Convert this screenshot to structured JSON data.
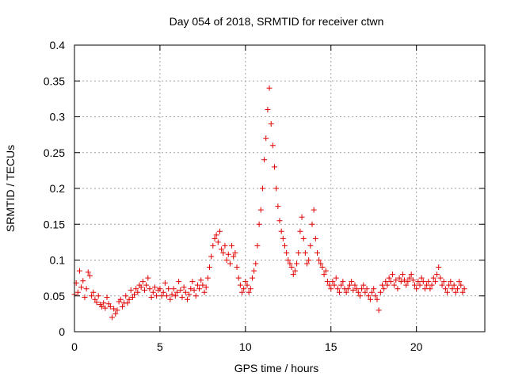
{
  "chart_data": {
    "type": "scatter",
    "title": "Day 054 of 2018, SRMTID for receiver ctwn",
    "xlabel": "GPS time / hours",
    "ylabel": "SRMTID / TECUs",
    "xlim": [
      0,
      24
    ],
    "ylim": [
      0,
      0.4
    ],
    "xticks": [
      0,
      5,
      10,
      15,
      20
    ],
    "xtick_labels": [
      "0",
      "5",
      "10",
      "15",
      "20"
    ],
    "yticks": [
      0,
      0.05,
      0.1,
      0.15,
      0.2,
      0.25,
      0.3,
      0.35,
      0.4
    ],
    "ytick_labels": [
      "0",
      "0.05",
      "0.1",
      "0.15",
      "0.2",
      "0.25",
      "0.3",
      "0.35",
      "0.4"
    ],
    "grid": true,
    "marker": "plus",
    "color": "#e00000",
    "series": [
      {
        "name": "SRMTID",
        "points": [
          [
            0.0,
            0.052
          ],
          [
            0.1,
            0.068
          ],
          [
            0.2,
            0.055
          ],
          [
            0.3,
            0.085
          ],
          [
            0.4,
            0.062
          ],
          [
            0.5,
            0.071
          ],
          [
            0.6,
            0.048
          ],
          [
            0.7,
            0.06
          ],
          [
            0.8,
            0.083
          ],
          [
            0.9,
            0.078
          ],
          [
            1.0,
            0.05
          ],
          [
            1.1,
            0.055
          ],
          [
            1.2,
            0.045
          ],
          [
            1.3,
            0.041
          ],
          [
            1.4,
            0.05
          ],
          [
            1.5,
            0.038
          ],
          [
            1.6,
            0.035
          ],
          [
            1.7,
            0.04
          ],
          [
            1.8,
            0.033
          ],
          [
            1.9,
            0.048
          ],
          [
            2.0,
            0.039
          ],
          [
            2.1,
            0.035
          ],
          [
            2.2,
            0.02
          ],
          [
            2.3,
            0.032
          ],
          [
            2.4,
            0.025
          ],
          [
            2.5,
            0.03
          ],
          [
            2.6,
            0.042
          ],
          [
            2.7,
            0.045
          ],
          [
            2.8,
            0.035
          ],
          [
            2.9,
            0.04
          ],
          [
            3.0,
            0.05
          ],
          [
            3.1,
            0.04
          ],
          [
            3.2,
            0.045
          ],
          [
            3.3,
            0.058
          ],
          [
            3.4,
            0.048
          ],
          [
            3.5,
            0.052
          ],
          [
            3.6,
            0.06
          ],
          [
            3.7,
            0.055
          ],
          [
            3.8,
            0.065
          ],
          [
            3.9,
            0.062
          ],
          [
            4.0,
            0.07
          ],
          [
            4.1,
            0.058
          ],
          [
            4.2,
            0.065
          ],
          [
            4.3,
            0.075
          ],
          [
            4.4,
            0.06
          ],
          [
            4.5,
            0.048
          ],
          [
            4.6,
            0.055
          ],
          [
            4.7,
            0.062
          ],
          [
            4.8,
            0.05
          ],
          [
            4.9,
            0.058
          ],
          [
            5.0,
            0.06
          ],
          [
            5.1,
            0.05
          ],
          [
            5.2,
            0.055
          ],
          [
            5.3,
            0.068
          ],
          [
            5.4,
            0.05
          ],
          [
            5.5,
            0.06
          ],
          [
            5.6,
            0.045
          ],
          [
            5.7,
            0.052
          ],
          [
            5.8,
            0.06
          ],
          [
            5.9,
            0.05
          ],
          [
            6.0,
            0.055
          ],
          [
            6.1,
            0.07
          ],
          [
            6.2,
            0.058
          ],
          [
            6.3,
            0.048
          ],
          [
            6.4,
            0.062
          ],
          [
            6.5,
            0.055
          ],
          [
            6.6,
            0.045
          ],
          [
            6.7,
            0.052
          ],
          [
            6.8,
            0.06
          ],
          [
            6.9,
            0.07
          ],
          [
            7.0,
            0.058
          ],
          [
            7.1,
            0.05
          ],
          [
            7.2,
            0.065
          ],
          [
            7.3,
            0.06
          ],
          [
            7.4,
            0.072
          ],
          [
            7.5,
            0.065
          ],
          [
            7.6,
            0.055
          ],
          [
            7.7,
            0.062
          ],
          [
            7.8,
            0.075
          ],
          [
            7.9,
            0.09
          ],
          [
            8.0,
            0.105
          ],
          [
            8.1,
            0.12
          ],
          [
            8.2,
            0.13
          ],
          [
            8.3,
            0.135
          ],
          [
            8.4,
            0.125
          ],
          [
            8.5,
            0.14
          ],
          [
            8.6,
            0.115
          ],
          [
            8.7,
            0.11
          ],
          [
            8.8,
            0.12
          ],
          [
            8.9,
            0.1
          ],
          [
            9.0,
            0.108
          ],
          [
            9.1,
            0.095
          ],
          [
            9.2,
            0.12
          ],
          [
            9.3,
            0.105
          ],
          [
            9.4,
            0.11
          ],
          [
            9.5,
            0.09
          ],
          [
            9.6,
            0.075
          ],
          [
            9.7,
            0.065
          ],
          [
            9.8,
            0.055
          ],
          [
            9.9,
            0.06
          ],
          [
            10.0,
            0.07
          ],
          [
            10.1,
            0.065
          ],
          [
            10.2,
            0.055
          ],
          [
            10.3,
            0.06
          ],
          [
            10.4,
            0.075
          ],
          [
            10.5,
            0.085
          ],
          [
            10.6,
            0.095
          ],
          [
            10.7,
            0.12
          ],
          [
            10.8,
            0.15
          ],
          [
            10.9,
            0.17
          ],
          [
            11.0,
            0.2
          ],
          [
            11.1,
            0.24
          ],
          [
            11.2,
            0.27
          ],
          [
            11.3,
            0.31
          ],
          [
            11.4,
            0.34
          ],
          [
            11.5,
            0.29
          ],
          [
            11.6,
            0.26
          ],
          [
            11.7,
            0.23
          ],
          [
            11.8,
            0.2
          ],
          [
            11.9,
            0.175
          ],
          [
            12.0,
            0.155
          ],
          [
            12.1,
            0.14
          ],
          [
            12.2,
            0.13
          ],
          [
            12.3,
            0.12
          ],
          [
            12.4,
            0.11
          ],
          [
            12.5,
            0.1
          ],
          [
            12.6,
            0.095
          ],
          [
            12.7,
            0.09
          ],
          [
            12.8,
            0.08
          ],
          [
            12.9,
            0.085
          ],
          [
            13.0,
            0.095
          ],
          [
            13.1,
            0.11
          ],
          [
            13.2,
            0.14
          ],
          [
            13.3,
            0.16
          ],
          [
            13.4,
            0.13
          ],
          [
            13.5,
            0.11
          ],
          [
            13.6,
            0.095
          ],
          [
            13.7,
            0.1
          ],
          [
            13.8,
            0.12
          ],
          [
            13.9,
            0.15
          ],
          [
            14.0,
            0.17
          ],
          [
            14.1,
            0.13
          ],
          [
            14.2,
            0.11
          ],
          [
            14.3,
            0.1
          ],
          [
            14.4,
            0.095
          ],
          [
            14.5,
            0.09
          ],
          [
            14.6,
            0.08
          ],
          [
            14.7,
            0.085
          ],
          [
            14.8,
            0.07
          ],
          [
            14.9,
            0.065
          ],
          [
            15.0,
            0.06
          ],
          [
            15.1,
            0.07
          ],
          [
            15.2,
            0.065
          ],
          [
            15.3,
            0.075
          ],
          [
            15.4,
            0.06
          ],
          [
            15.5,
            0.055
          ],
          [
            15.6,
            0.065
          ],
          [
            15.7,
            0.07
          ],
          [
            15.8,
            0.06
          ],
          [
            15.9,
            0.055
          ],
          [
            16.0,
            0.06
          ],
          [
            16.1,
            0.065
          ],
          [
            16.2,
            0.07
          ],
          [
            16.3,
            0.058
          ],
          [
            16.4,
            0.065
          ],
          [
            16.5,
            0.06
          ],
          [
            16.6,
            0.055
          ],
          [
            16.7,
            0.05
          ],
          [
            16.8,
            0.06
          ],
          [
            16.9,
            0.065
          ],
          [
            17.0,
            0.055
          ],
          [
            17.1,
            0.06
          ],
          [
            17.2,
            0.05
          ],
          [
            17.3,
            0.045
          ],
          [
            17.4,
            0.055
          ],
          [
            17.5,
            0.06
          ],
          [
            17.6,
            0.05
          ],
          [
            17.7,
            0.045
          ],
          [
            17.8,
            0.03
          ],
          [
            17.9,
            0.055
          ],
          [
            18.0,
            0.065
          ],
          [
            18.1,
            0.06
          ],
          [
            18.2,
            0.07
          ],
          [
            18.3,
            0.065
          ],
          [
            18.4,
            0.075
          ],
          [
            18.5,
            0.07
          ],
          [
            18.6,
            0.08
          ],
          [
            18.7,
            0.065
          ],
          [
            18.8,
            0.072
          ],
          [
            18.9,
            0.06
          ],
          [
            19.0,
            0.075
          ],
          [
            19.1,
            0.07
          ],
          [
            19.2,
            0.08
          ],
          [
            19.3,
            0.072
          ],
          [
            19.4,
            0.065
          ],
          [
            19.5,
            0.07
          ],
          [
            19.6,
            0.075
          ],
          [
            19.7,
            0.08
          ],
          [
            19.8,
            0.072
          ],
          [
            19.9,
            0.065
          ],
          [
            20.0,
            0.06
          ],
          [
            20.1,
            0.07
          ],
          [
            20.2,
            0.065
          ],
          [
            20.3,
            0.075
          ],
          [
            20.4,
            0.07
          ],
          [
            20.5,
            0.06
          ],
          [
            20.6,
            0.065
          ],
          [
            20.7,
            0.07
          ],
          [
            20.8,
            0.06
          ],
          [
            20.9,
            0.065
          ],
          [
            21.0,
            0.075
          ],
          [
            21.1,
            0.07
          ],
          [
            21.2,
            0.08
          ],
          [
            21.3,
            0.09
          ],
          [
            21.4,
            0.075
          ],
          [
            21.5,
            0.065
          ],
          [
            21.6,
            0.07
          ],
          [
            21.7,
            0.06
          ],
          [
            21.8,
            0.055
          ],
          [
            21.9,
            0.065
          ],
          [
            22.0,
            0.07
          ],
          [
            22.1,
            0.06
          ],
          [
            22.2,
            0.065
          ],
          [
            22.3,
            0.055
          ],
          [
            22.4,
            0.06
          ],
          [
            22.5,
            0.07
          ],
          [
            22.6,
            0.065
          ],
          [
            22.7,
            0.055
          ],
          [
            22.8,
            0.06
          ]
        ]
      }
    ]
  }
}
